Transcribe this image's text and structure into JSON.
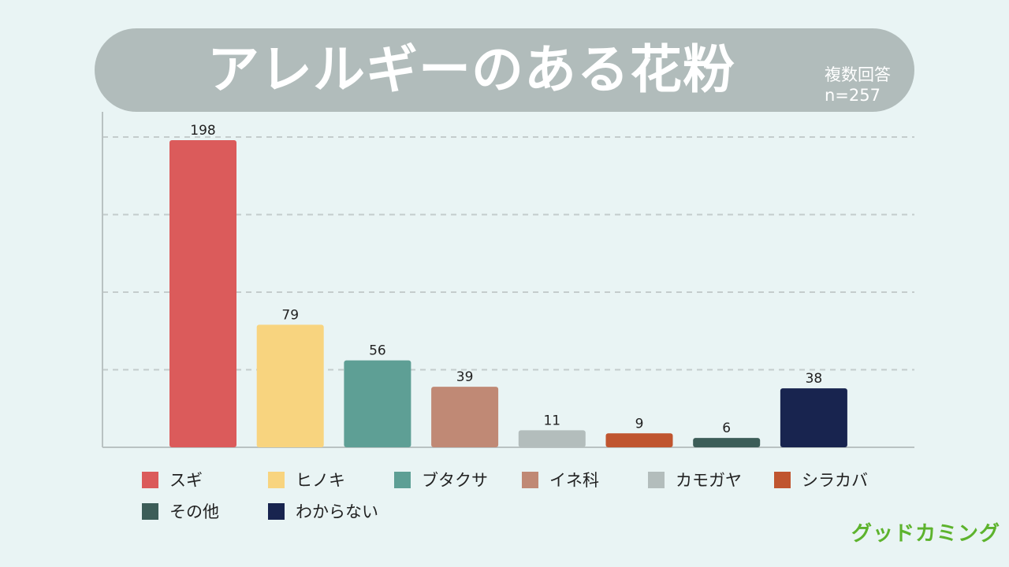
{
  "title": "アレルギーのある花粉",
  "note": {
    "line1": "複数回答",
    "line2": "n=257"
  },
  "brand": "グッドカミング",
  "chart_data": {
    "type": "bar",
    "categories": [
      "スギ",
      "ヒノキ",
      "ブタクサ",
      "イネ科",
      "カモガヤ",
      "シラカバ",
      "その他",
      "わからない"
    ],
    "values": [
      198,
      79,
      56,
      39,
      11,
      9,
      6,
      38
    ],
    "colors": [
      "#db5b5b",
      "#f8d47f",
      "#5e9f95",
      "#c08975",
      "#b3bdbc",
      "#c0552f",
      "#3c5d58",
      "#18244f"
    ],
    "ylim": [
      0,
      200
    ],
    "grid": true,
    "legend": "bottom"
  }
}
